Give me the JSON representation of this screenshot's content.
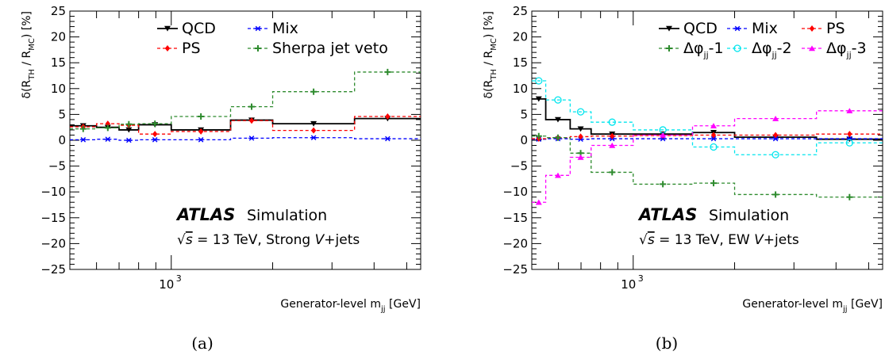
{
  "chart_data": [
    {
      "type": "line",
      "panel_caption": "(a)",
      "xlabel": "Generator-level m",
      "xlabel_sub": "jj",
      "xlabel_unit": "[GeV]",
      "ylabel": "δ(R",
      "ylabel_sub1": "TH",
      "ylabel_mid": " / R",
      "ylabel_sub2": "MC",
      "ylabel_end": ") [%]",
      "x_scale": "log",
      "xlim": [
        500,
        5500
      ],
      "ylim": [
        -25,
        25
      ],
      "y_ticks": [
        "25",
        "20",
        "15",
        "10",
        "5",
        "0",
        "−5",
        "−10",
        "−15",
        "−20",
        "−25"
      ],
      "x_tick_label": "10",
      "x_tick_exp": "3",
      "bin_edges": [
        500,
        600,
        700,
        800,
        1000,
        1500,
        2000,
        3500,
        5500
      ],
      "atlas_label": "ATLAS",
      "sim_label": "Simulation",
      "energy_label": "= 13 TeV, Strong ",
      "process_label": "V",
      "process_suffix": "+jets",
      "legend_cols": 2,
      "series": [
        {
          "name": "QCD",
          "color": "#000000",
          "marker": "tri-down",
          "dashed": false,
          "values": [
            2.8,
            2.5,
            2.0,
            3.0,
            2.0,
            3.9,
            3.2,
            4.2
          ]
        },
        {
          "name": "Mix",
          "color": "#0000ff",
          "marker": "star",
          "dashed": true,
          "values": [
            0.1,
            0.2,
            0.0,
            0.1,
            0.1,
            0.4,
            0.5,
            0.3
          ]
        },
        {
          "name": "PS",
          "color": "#ff0000",
          "marker": "diamond",
          "dashed": true,
          "values": [
            2.6,
            3.2,
            2.9,
            1.2,
            1.7,
            3.8,
            1.9,
            4.6
          ]
        },
        {
          "name": "Sherpa jet veto",
          "color": "#2e8b2e",
          "marker": "cross",
          "dashed": true,
          "values": [
            2.2,
            2.4,
            3.1,
            3.2,
            4.6,
            6.5,
            9.4,
            13.2
          ]
        }
      ]
    },
    {
      "type": "line",
      "panel_caption": "(b)",
      "xlabel": "Generator-level m",
      "xlabel_sub": "jj",
      "xlabel_unit": "[GeV]",
      "ylabel": "δ(R",
      "ylabel_sub1": "TH",
      "ylabel_mid": " / R",
      "ylabel_sub2": "MC",
      "ylabel_end": ") [%]",
      "x_scale": "log",
      "xlim": [
        500,
        5500
      ],
      "ylim": [
        -25,
        25
      ],
      "y_ticks": [
        "25",
        "20",
        "15",
        "10",
        "5",
        "0",
        "−5",
        "−10",
        "−15",
        "−20",
        "−25"
      ],
      "x_tick_label": "10",
      "x_tick_exp": "3",
      "bin_edges": [
        500,
        550,
        650,
        750,
        1000,
        1500,
        2000,
        3500,
        5500
      ],
      "atlas_label": "ATLAS",
      "sim_label": "Simulation",
      "energy_label": "= 13 TeV, EW ",
      "process_label": "V",
      "process_suffix": "+jets",
      "legend_cols": 3,
      "series": [
        {
          "name": "QCD",
          "color": "#000000",
          "marker": "tri-down",
          "dashed": false,
          "values": [
            8.0,
            4.0,
            2.2,
            1.2,
            1.2,
            1.5,
            0.6,
            0.2
          ]
        },
        {
          "name": "Mix",
          "color": "#0000ff",
          "marker": "star",
          "dashed": true,
          "values": [
            0.2,
            0.3,
            0.2,
            0.3,
            0.3,
            0.3,
            0.3,
            0.3
          ]
        },
        {
          "name": "PS",
          "color": "#ff0000",
          "marker": "diamond",
          "dashed": true,
          "values": [
            0.3,
            0.5,
            0.7,
            0.8,
            0.9,
            1.0,
            1.0,
            1.2
          ]
        },
        {
          "name": "Δφ",
          "name_sub": "jj",
          "name_suffix": "-1",
          "color": "#2e8b2e",
          "marker": "cross",
          "dashed": true,
          "values": [
            0.8,
            0.5,
            -2.5,
            -6.2,
            -8.5,
            -8.3,
            -10.5,
            -11.0
          ]
        },
        {
          "name": "Δφ",
          "name_sub": "jj",
          "name_suffix": "-2",
          "color": "#00e5ee",
          "marker": "circle",
          "dashed": true,
          "values": [
            11.5,
            7.8,
            5.5,
            3.5,
            2.0,
            -1.3,
            -2.8,
            -0.5
          ]
        },
        {
          "name": "Δφ",
          "name_sub": "jj",
          "name_suffix": "-3",
          "color": "#ff00ff",
          "marker": "triangle-up",
          "dashed": true,
          "values": [
            -12.0,
            -6.8,
            -3.3,
            -1.0,
            1.0,
            2.8,
            4.2,
            5.7
          ]
        }
      ]
    }
  ]
}
